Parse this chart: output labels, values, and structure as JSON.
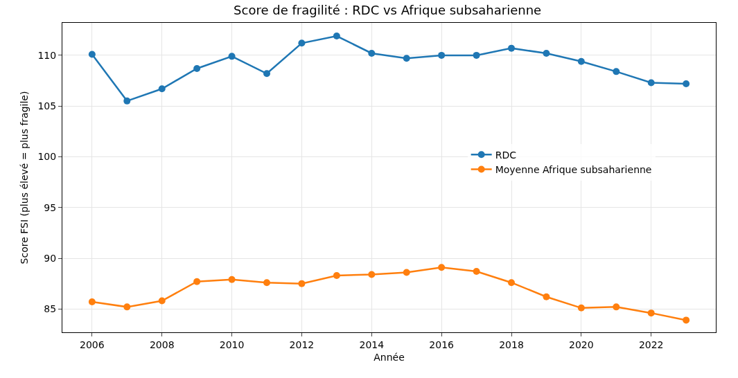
{
  "chart_data": {
    "type": "line",
    "title": "Score de fragilité : RDC vs Afrique subsaharienne",
    "xlabel": "Année",
    "ylabel": "Score FSI (plus élevé = plus fragile)",
    "x": [
      2006,
      2007,
      2008,
      2009,
      2010,
      2011,
      2012,
      2013,
      2014,
      2015,
      2016,
      2017,
      2018,
      2019,
      2020,
      2021,
      2022,
      2023
    ],
    "series": [
      {
        "name": "RDC",
        "color": "#1f77b4",
        "values": [
          110.1,
          105.5,
          106.7,
          108.7,
          109.9,
          108.2,
          111.2,
          111.9,
          110.2,
          109.7,
          110.0,
          110.0,
          110.7,
          110.2,
          109.4,
          108.4,
          107.3,
          107.2
        ]
      },
      {
        "name": "Moyenne Afrique subsaharienne",
        "color": "#ff7f0e",
        "values": [
          85.7,
          85.2,
          85.8,
          87.7,
          87.9,
          87.6,
          87.5,
          88.3,
          88.4,
          88.6,
          89.1,
          88.7,
          87.6,
          86.2,
          85.1,
          85.2,
          84.6,
          83.9
        ]
      }
    ],
    "xlim": [
      2005.15,
      2023.85
    ],
    "xticks": [
      2006,
      2008,
      2010,
      2012,
      2014,
      2016,
      2018,
      2020,
      2022
    ],
    "ylim": [
      82.7,
      113.2
    ],
    "yticks": [
      85,
      90,
      95,
      100,
      105,
      110
    ],
    "grid": true,
    "legend": "right",
    "marker": "circle",
    "line_style": "solid"
  }
}
